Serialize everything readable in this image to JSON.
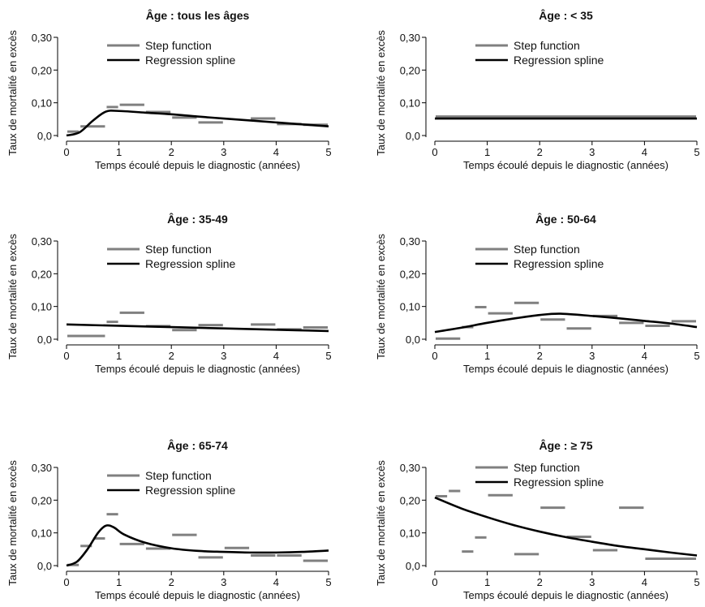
{
  "legend": {
    "step_label": "Step function",
    "spline_label": "Regression spline"
  },
  "colors": {
    "step": "#808080",
    "spline": "#000000",
    "axis": "#000000"
  },
  "chart_data": [
    {
      "type": "line",
      "title": "Âge : tous les âges",
      "xlabel": "Temps écoulé depuis le diagnostic (années)",
      "ylabel": "Taux de mortalité en excès",
      "xlim": [
        0,
        5
      ],
      "ylim": [
        0,
        0.3
      ],
      "xticks": [
        "0",
        "1",
        "2",
        "3",
        "4",
        "5"
      ],
      "yticks": [
        "0,0",
        "0,10",
        "0,20",
        "0,30"
      ],
      "legend_labels": [
        "Step function",
        "Regression spline"
      ],
      "step": [
        {
          "x0": 0.0,
          "x1": 0.25,
          "y": 0.012
        },
        {
          "x0": 0.25,
          "x1": 0.75,
          "y": 0.028
        },
        {
          "x0": 0.75,
          "x1": 1.0,
          "y": 0.087
        },
        {
          "x0": 1.0,
          "x1": 1.5,
          "y": 0.094
        },
        {
          "x0": 1.5,
          "x1": 2.0,
          "y": 0.072
        },
        {
          "x0": 2.0,
          "x1": 2.5,
          "y": 0.055
        },
        {
          "x0": 2.5,
          "x1": 3.0,
          "y": 0.04
        },
        {
          "x0": 3.5,
          "x1": 4.0,
          "y": 0.052
        },
        {
          "x0": 4.0,
          "x1": 4.5,
          "y": 0.035
        },
        {
          "x0": 4.5,
          "x1": 5.0,
          "y": 0.033
        }
      ],
      "spline": {
        "x": [
          0,
          0.25,
          0.5,
          0.75,
          1.0,
          1.5,
          2.0,
          2.5,
          3.0,
          3.5,
          4.0,
          4.5,
          5.0
        ],
        "y": [
          0.0,
          0.01,
          0.045,
          0.073,
          0.075,
          0.07,
          0.065,
          0.058,
          0.052,
          0.046,
          0.04,
          0.034,
          0.028
        ]
      }
    },
    {
      "type": "line",
      "title": "Âge : < 35",
      "xlabel": "Temps écoulé depuis le diagnostic (années)",
      "ylabel": "Taux de mortalité en excès",
      "xlim": [
        0,
        5
      ],
      "ylim": [
        0,
        0.3
      ],
      "xticks": [
        "0",
        "1",
        "2",
        "3",
        "4",
        "5"
      ],
      "yticks": [
        "0,0",
        "0,10",
        "0,20",
        "0,30"
      ],
      "legend_labels": [
        "Step function",
        "Regression spline"
      ],
      "step": [
        {
          "x0": 0.0,
          "x1": 5.0,
          "y": 0.058
        }
      ],
      "spline": {
        "x": [
          0,
          5
        ],
        "y": [
          0.052,
          0.052
        ]
      }
    },
    {
      "type": "line",
      "title": "Âge : 35-49",
      "xlabel": "Temps écoulé depuis le diagnostic (années)",
      "ylabel": "Taux de mortalité en excès",
      "xlim": [
        0,
        5
      ],
      "ylim": [
        0,
        0.3
      ],
      "xticks": [
        "0",
        "1",
        "2",
        "3",
        "4",
        "5"
      ],
      "yticks": [
        "0,0",
        "0,10",
        "0,20",
        "0,30"
      ],
      "legend_labels": [
        "Step function",
        "Regression spline"
      ],
      "step": [
        {
          "x0": 0.0,
          "x1": 0.75,
          "y": 0.01
        },
        {
          "x0": 0.75,
          "x1": 1.0,
          "y": 0.053
        },
        {
          "x0": 1.0,
          "x1": 1.5,
          "y": 0.081
        },
        {
          "x0": 1.5,
          "x1": 2.0,
          "y": 0.04
        },
        {
          "x0": 2.0,
          "x1": 2.5,
          "y": 0.028
        },
        {
          "x0": 2.5,
          "x1": 3.0,
          "y": 0.043
        },
        {
          "x0": 3.5,
          "x1": 4.0,
          "y": 0.045
        },
        {
          "x0": 4.0,
          "x1": 4.5,
          "y": 0.03
        },
        {
          "x0": 4.5,
          "x1": 5.0,
          "y": 0.036
        }
      ],
      "spline": {
        "x": [
          0,
          1,
          2,
          3,
          4,
          5
        ],
        "y": [
          0.045,
          0.041,
          0.037,
          0.033,
          0.029,
          0.025
        ]
      }
    },
    {
      "type": "line",
      "title": "Âge : 50-64",
      "xlabel": "Temps écoulé depuis le diagnostic (années)",
      "ylabel": "Taux de mortalité en excès",
      "xlim": [
        0,
        5
      ],
      "ylim": [
        0,
        0.3
      ],
      "xticks": [
        "0",
        "1",
        "2",
        "3",
        "4",
        "5"
      ],
      "yticks": [
        "0,0",
        "0,10",
        "0,20",
        "0,30"
      ],
      "legend_labels": [
        "Step function",
        "Regression spline"
      ],
      "step": [
        {
          "x0": 0.0,
          "x1": 0.5,
          "y": 0.002
        },
        {
          "x0": 0.5,
          "x1": 0.75,
          "y": 0.037
        },
        {
          "x0": 0.75,
          "x1": 1.0,
          "y": 0.098
        },
        {
          "x0": 1.0,
          "x1": 1.5,
          "y": 0.079
        },
        {
          "x0": 1.5,
          "x1": 2.0,
          "y": 0.111
        },
        {
          "x0": 2.0,
          "x1": 2.5,
          "y": 0.06
        },
        {
          "x0": 2.5,
          "x1": 3.0,
          "y": 0.033
        },
        {
          "x0": 3.0,
          "x1": 3.5,
          "y": 0.071
        },
        {
          "x0": 3.5,
          "x1": 4.0,
          "y": 0.05
        },
        {
          "x0": 4.0,
          "x1": 4.5,
          "y": 0.041
        },
        {
          "x0": 4.5,
          "x1": 5.0,
          "y": 0.055
        }
      ],
      "spline": {
        "x": [
          0,
          0.5,
          1.0,
          1.5,
          2.0,
          2.4,
          3.0,
          3.5,
          4.0,
          4.5,
          5.0
        ],
        "y": [
          0.022,
          0.035,
          0.05,
          0.063,
          0.074,
          0.078,
          0.071,
          0.064,
          0.056,
          0.048,
          0.037
        ]
      }
    },
    {
      "type": "line",
      "title": "Âge : 65-74",
      "xlabel": "Temps écoulé depuis le diagnostic (années)",
      "ylabel": "Taux de mortalité en excès",
      "xlim": [
        0,
        5
      ],
      "ylim": [
        0,
        0.3
      ],
      "xticks": [
        "0",
        "1",
        "2",
        "3",
        "4",
        "5"
      ],
      "yticks": [
        "0,0",
        "0,10",
        "0,20",
        "0,30"
      ],
      "legend_labels": [
        "Step function",
        "Regression spline"
      ],
      "step": [
        {
          "x0": 0.0,
          "x1": 0.25,
          "y": 0.002
        },
        {
          "x0": 0.25,
          "x1": 0.5,
          "y": 0.06
        },
        {
          "x0": 0.5,
          "x1": 0.75,
          "y": 0.083
        },
        {
          "x0": 0.75,
          "x1": 1.0,
          "y": 0.157
        },
        {
          "x0": 1.0,
          "x1": 1.5,
          "y": 0.066
        },
        {
          "x0": 1.5,
          "x1": 2.0,
          "y": 0.052
        },
        {
          "x0": 2.0,
          "x1": 2.5,
          "y": 0.094
        },
        {
          "x0": 2.5,
          "x1": 3.0,
          "y": 0.025
        },
        {
          "x0": 3.0,
          "x1": 3.5,
          "y": 0.054
        },
        {
          "x0": 3.5,
          "x1": 4.0,
          "y": 0.031
        },
        {
          "x0": 4.0,
          "x1": 4.5,
          "y": 0.031
        },
        {
          "x0": 4.5,
          "x1": 5.0,
          "y": 0.015
        }
      ],
      "spline": {
        "x": [
          0,
          0.2,
          0.4,
          0.6,
          0.75,
          0.9,
          1.1,
          1.5,
          2.0,
          2.5,
          3.0,
          3.5,
          4.0,
          4.5,
          5.0
        ],
        "y": [
          0.0,
          0.012,
          0.05,
          0.1,
          0.122,
          0.117,
          0.095,
          0.07,
          0.053,
          0.045,
          0.042,
          0.04,
          0.04,
          0.042,
          0.046
        ]
      }
    },
    {
      "type": "line",
      "title": "Âge : ≥ 75",
      "xlabel": "Temps écoulé depuis le diagnostic (années)",
      "ylabel": "Taux de mortalité en excès",
      "xlim": [
        0,
        5
      ],
      "ylim": [
        0,
        0.3
      ],
      "xticks": [
        "0",
        "1",
        "2",
        "3",
        "4",
        "5"
      ],
      "yticks": [
        "0,0",
        "0,10",
        "0,20",
        "0,30"
      ],
      "legend_labels": [
        "Step function",
        "Regression spline"
      ],
      "step": [
        {
          "x0": 0.0,
          "x1": 0.25,
          "y": 0.212
        },
        {
          "x0": 0.25,
          "x1": 0.5,
          "y": 0.228
        },
        {
          "x0": 0.5,
          "x1": 0.75,
          "y": 0.043
        },
        {
          "x0": 0.75,
          "x1": 1.0,
          "y": 0.086
        },
        {
          "x0": 1.0,
          "x1": 1.5,
          "y": 0.215
        },
        {
          "x0": 1.5,
          "x1": 2.0,
          "y": 0.035
        },
        {
          "x0": 2.0,
          "x1": 2.5,
          "y": 0.177
        },
        {
          "x0": 2.5,
          "x1": 3.0,
          "y": 0.088
        },
        {
          "x0": 3.0,
          "x1": 3.5,
          "y": 0.047
        },
        {
          "x0": 3.5,
          "x1": 4.0,
          "y": 0.177
        },
        {
          "x0": 4.0,
          "x1": 5.0,
          "y": 0.021
        }
      ],
      "spline": {
        "x": [
          0,
          0.5,
          1.0,
          1.5,
          2.0,
          2.5,
          3.0,
          3.5,
          4.0,
          4.5,
          5.0
        ],
        "y": [
          0.208,
          0.175,
          0.148,
          0.124,
          0.104,
          0.087,
          0.073,
          0.06,
          0.05,
          0.04,
          0.031
        ]
      }
    }
  ]
}
